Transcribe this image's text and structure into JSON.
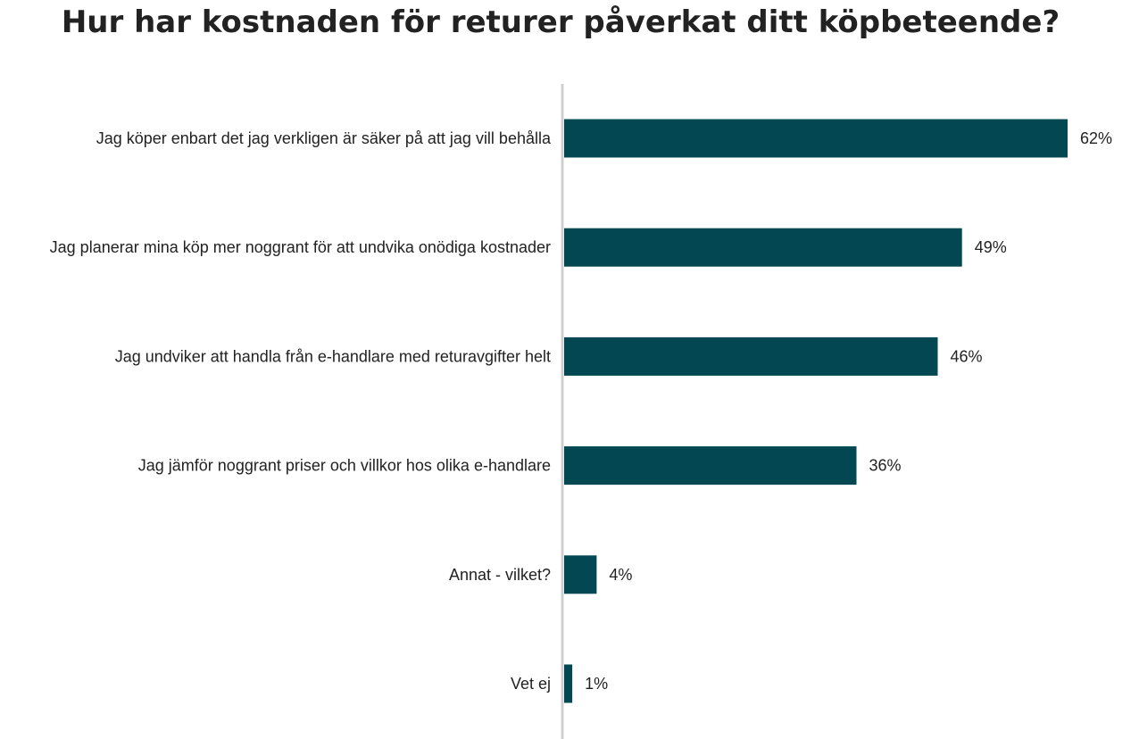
{
  "chart_data": {
    "type": "bar",
    "orientation": "horizontal",
    "title": "Hur har kostnaden för returer påverkat ditt köpbeteende?",
    "categories": [
      "Jag köper enbart det jag verkligen är säker på att jag vill behålla",
      "Jag planerar mina köp mer noggrant för att undvika onödiga kostnader",
      "Jag undviker att handla från e-handlare med returavgifter helt",
      "Jag jämför noggrant priser och villkor hos olika e-handlare",
      "Annat - vilket?",
      "Vet ej"
    ],
    "values": [
      62,
      49,
      46,
      36,
      4,
      1
    ],
    "value_labels": [
      "62%",
      "49%",
      "46%",
      "36%",
      "4%",
      "1%"
    ],
    "unit": "%",
    "xlim": [
      0,
      62
    ],
    "grid": false,
    "legend": "none",
    "colors": {
      "bar": "#024751",
      "axis": "#d0d0d0",
      "text": "#222222"
    }
  }
}
